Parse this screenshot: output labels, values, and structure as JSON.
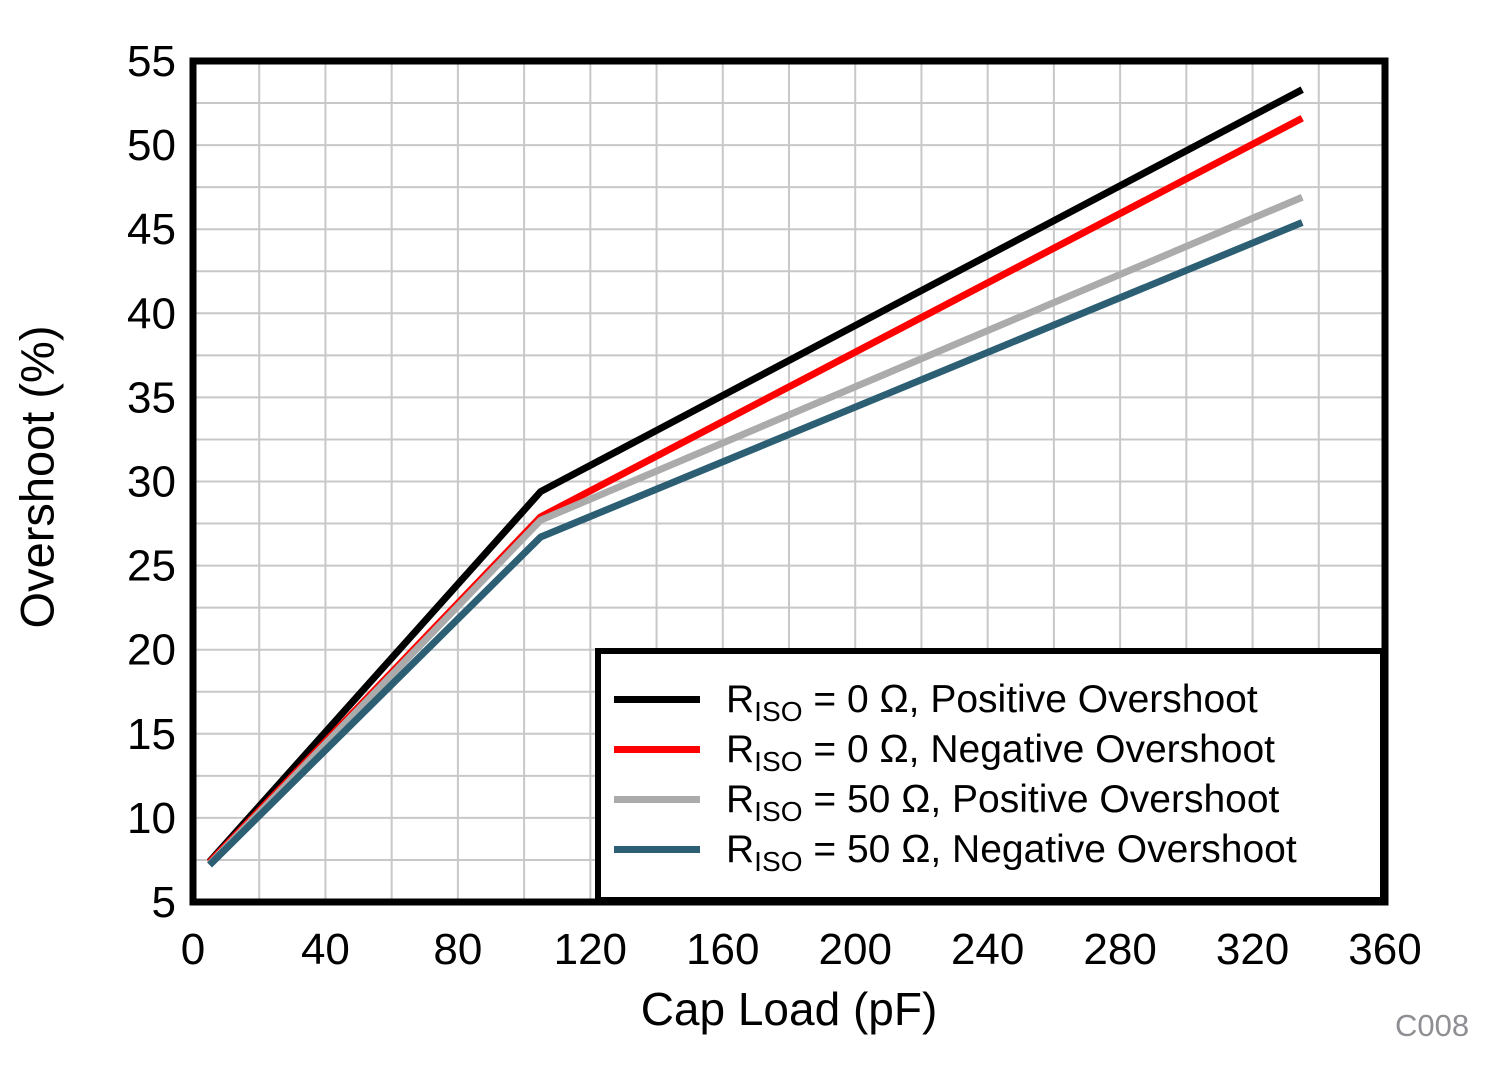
{
  "chart_data": {
    "type": "line",
    "title": "",
    "xlabel": "Cap Load (pF)",
    "ylabel": "Overshoot (%)",
    "figure_code": "C008",
    "xlim": [
      0,
      360
    ],
    "ylim": [
      5,
      55
    ],
    "xticks": [
      0,
      40,
      80,
      120,
      160,
      200,
      240,
      280,
      320,
      360
    ],
    "yticks": [
      5,
      10,
      15,
      20,
      25,
      30,
      35,
      40,
      45,
      50,
      55
    ],
    "x_minor_step": 20,
    "y_minor_step": 2.5,
    "grid": true,
    "legend_position": "bottom-right",
    "series": [
      {
        "id": "riso-0-positive",
        "name": "RISO = 0 Ω, Positive Overshoot",
        "legend": {
          "base": "R",
          "sub": "ISO",
          "rest": " = 0 Ω, Positive Overshoot"
        },
        "color": "#000000",
        "points": [
          [
            5,
            7.4
          ],
          [
            105,
            29.4
          ],
          [
            335,
            53.3
          ]
        ]
      },
      {
        "id": "riso-0-negative",
        "name": "RISO = 0 Ω, Negative Overshoot",
        "legend": {
          "base": "R",
          "sub": "ISO",
          "rest": " = 0 Ω, Negative Overshoot"
        },
        "color": "#FF0000",
        "points": [
          [
            5,
            7.35
          ],
          [
            105,
            27.9
          ],
          [
            335,
            51.6
          ]
        ]
      },
      {
        "id": "riso-50-positive",
        "name": "RISO = 50 Ω, Positive Overshoot",
        "legend": {
          "base": "R",
          "sub": "ISO",
          "rest": " = 50 Ω, Positive Overshoot"
        },
        "color": "#ABABAB",
        "points": [
          [
            5,
            7.25
          ],
          [
            105,
            27.7
          ],
          [
            335,
            46.9
          ]
        ]
      },
      {
        "id": "riso-50-negative",
        "name": "RISO = 50 Ω, Negative Overshoot",
        "legend": {
          "base": "R",
          "sub": "ISO",
          "rest": " = 50 Ω, Negative Overshoot"
        },
        "color": "#2D5F74",
        "points": [
          [
            5,
            7.2
          ],
          [
            105,
            26.7
          ],
          [
            335,
            45.4
          ]
        ]
      }
    ],
    "colors": {
      "grid": "#C8C8C8",
      "axis": "#000000",
      "background": "#FFFFFF",
      "figure_code": "#8F8F93"
    }
  }
}
